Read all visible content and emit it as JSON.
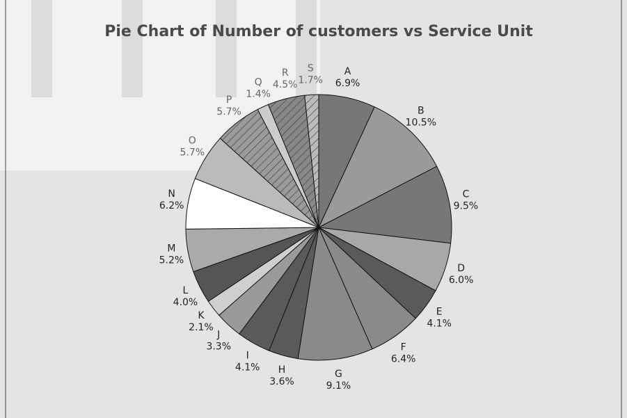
{
  "chart_data": {
    "type": "pie",
    "title": "Pie Chart of Number of customers vs Service Unit",
    "categories": [
      "A",
      "B",
      "C",
      "D",
      "E",
      "F",
      "G",
      "H",
      "I",
      "J",
      "K",
      "L",
      "M",
      "N",
      "O",
      "P",
      "Q",
      "R",
      "S"
    ],
    "values": [
      6.9,
      10.5,
      9.5,
      6.0,
      4.1,
      6.4,
      9.1,
      3.6,
      4.1,
      3.3,
      2.1,
      4.0,
      5.2,
      6.2,
      5.7,
      5.7,
      1.4,
      4.5,
      1.7
    ],
    "value_labels": [
      "6.9%",
      "10.5%",
      "9.5%",
      "6.0%",
      "4.1%",
      "6.4%",
      "9.1%",
      "3.6%",
      "4.1%",
      "3.3%",
      "2.1%",
      "4.0%",
      "5.2%",
      "6.2%",
      "5.7%",
      "5.7%",
      "1.4%",
      "4.5%",
      "1.7%"
    ],
    "colors": [
      "#777777",
      "#9a9a9a",
      "#777777",
      "#a8a8a8",
      "#5a5a5a",
      "#8a8a8a",
      "#8a8a8a",
      "#5a5a5a",
      "#5a5a5a",
      "#9a9a9a",
      "#cfcfcf",
      "#555555",
      "#aaaaaa",
      "#ffffff",
      "#bbbbbb",
      "#9a9a9a",
      "#cccccc",
      "#888888",
      "#bbbbbb"
    ],
    "hatch": [
      false,
      false,
      false,
      false,
      false,
      false,
      false,
      false,
      false,
      false,
      false,
      false,
      false,
      false,
      false,
      true,
      false,
      true,
      true
    ]
  }
}
